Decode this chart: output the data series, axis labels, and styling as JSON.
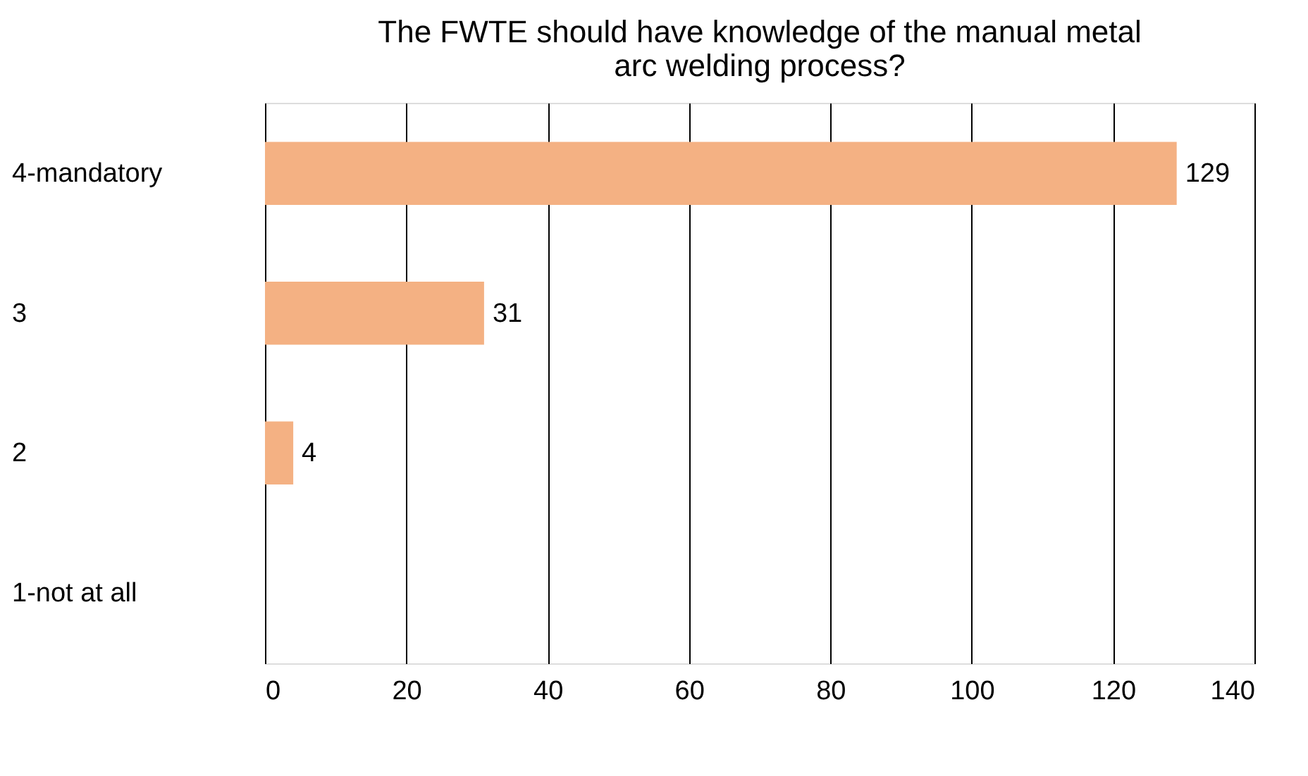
{
  "chart_data": {
    "type": "bar",
    "orientation": "horizontal",
    "title": "The FWTE should have knowledge of the manual metal\narc welding process?",
    "categories": [
      "4-mandatory",
      "3",
      "2",
      "1-not at all"
    ],
    "values": [
      129,
      31,
      4,
      0
    ],
    "value_labels": [
      "129",
      "31",
      "4",
      null
    ],
    "color": "#f4b183",
    "xlim": [
      0,
      140
    ],
    "xticks": [
      0,
      20,
      40,
      60,
      80,
      100,
      120,
      140
    ],
    "grid": "x"
  }
}
